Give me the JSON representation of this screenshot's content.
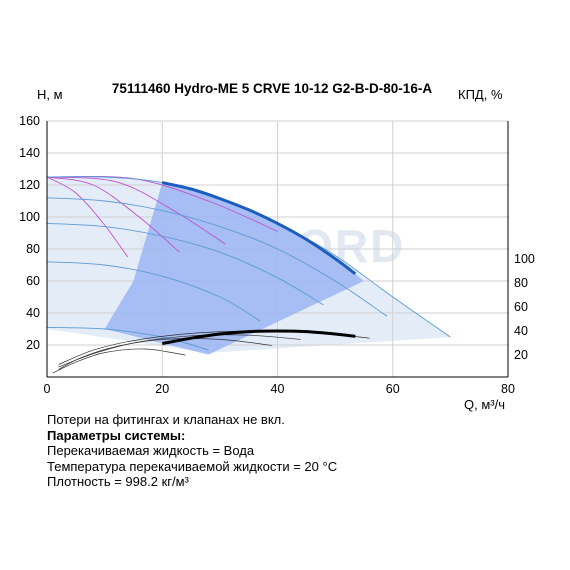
{
  "chart_data": {
    "type": "line",
    "title": "75111460 Hydro-ME 5 CRVE 10-12 G2-B-D-80-16-A",
    "ylabel": "H, м",
    "y2label": "КПД, %",
    "xlabel": "Q, м³/ч",
    "watermark": "VANDJORD",
    "xlim": [
      0,
      80
    ],
    "ylim": [
      0,
      160
    ],
    "y2lim": [
      0,
      120
    ],
    "xticks": [
      "0",
      "20",
      "40",
      "60",
      "80"
    ],
    "yticks": [
      "20",
      "40",
      "60",
      "80",
      "100",
      "120",
      "140",
      "160"
    ],
    "y2ticks": [
      "20",
      "40",
      "60",
      "80",
      "100"
    ],
    "grid": true,
    "colors": {
      "operating_area": "#9bb6f2",
      "light_area": "#e4ecf8",
      "head_curve": "#1b5dc0",
      "efficiency_curve": "#000000",
      "speed_curves": "#5b9bd5",
      "iso_lines": "#c050d0"
    },
    "series": [
      {
        "role": "head_max_speed_operating",
        "x": [
          20,
          25,
          30,
          35,
          40,
          45,
          50,
          53.5
        ],
        "y": [
          121.5,
          117.5,
          111.5,
          104.5,
          96,
          86,
          74,
          64.5
        ]
      },
      {
        "role": "efficiency_operating",
        "x": [
          20,
          25,
          30,
          35,
          40,
          45,
          50,
          53.5
        ],
        "y": [
          29.5,
          34,
          37.5,
          39.5,
          40,
          39.5,
          37.5,
          35.5
        ]
      },
      {
        "role": "head_max_speed_full",
        "x": [
          0,
          10,
          20,
          30,
          40,
          50,
          60,
          70
        ],
        "y": [
          125,
          125,
          121.5,
          111.5,
          96,
          76,
          50,
          25
        ]
      },
      {
        "role": "head_speed_2",
        "x": [
          0,
          10,
          20,
          30,
          40,
          50,
          59
        ],
        "y": [
          112,
          110,
          104,
          94,
          80,
          60,
          38
        ]
      },
      {
        "role": "head_speed_3",
        "x": [
          0,
          10,
          20,
          30,
          40,
          48
        ],
        "y": [
          96,
          94,
          88,
          78,
          62,
          45
        ]
      },
      {
        "role": "head_speed_4",
        "x": [
          0,
          10,
          20,
          30,
          37
        ],
        "y": [
          72,
          70,
          63,
          50,
          35
        ]
      },
      {
        "role": "head_speed_5",
        "x": [
          0,
          10,
          20,
          28
        ],
        "y": [
          31,
          30,
          25,
          17
        ]
      },
      {
        "role": "efficiency_speed_2",
        "x": [
          2,
          8,
          15,
          25,
          35,
          45,
          56
        ],
        "y": [
          12,
          24,
          32,
          38,
          40,
          39.5,
          34
        ]
      },
      {
        "role": "efficiency_speed_3",
        "x": [
          2,
          8,
          15,
          25,
          35,
          44
        ],
        "y": [
          10,
          21,
          30,
          36,
          36.5,
          33
        ]
      },
      {
        "role": "efficiency_speed_4",
        "x": [
          2,
          6,
          12,
          20,
          30,
          39
        ],
        "y": [
          8,
          18,
          27,
          33,
          33,
          28
        ]
      },
      {
        "role": "efficiency_speed_5",
        "x": [
          1,
          5,
          10,
          17,
          24
        ],
        "y": [
          5,
          14,
          22,
          25,
          20
        ]
      },
      {
        "role": "iso_line_1",
        "x": [
          0,
          5,
          10,
          14
        ],
        "y": [
          125,
          115,
          95,
          75
        ]
      },
      {
        "role": "iso_line_2",
        "x": [
          0,
          8,
          16,
          23
        ],
        "y": [
          125,
          120,
          100,
          78
        ]
      },
      {
        "role": "iso_line_3",
        "x": [
          0,
          12,
          22,
          31
        ],
        "y": [
          125,
          122,
          104,
          83
        ]
      },
      {
        "role": "iso_line_4",
        "x": [
          0,
          15,
          28,
          40
        ],
        "y": [
          125,
          124,
          110,
          91
        ]
      }
    ]
  },
  "notes": {
    "line1": "Потери на фитингах и клапанах не вкл.",
    "line2": "Параметры системы:",
    "line3": "Перекачиваемая жидкость = Вода",
    "line4": "Температура перекачиваемой жидкости = 20 °C",
    "line5": "Плотность = 998.2 кг/м³"
  }
}
